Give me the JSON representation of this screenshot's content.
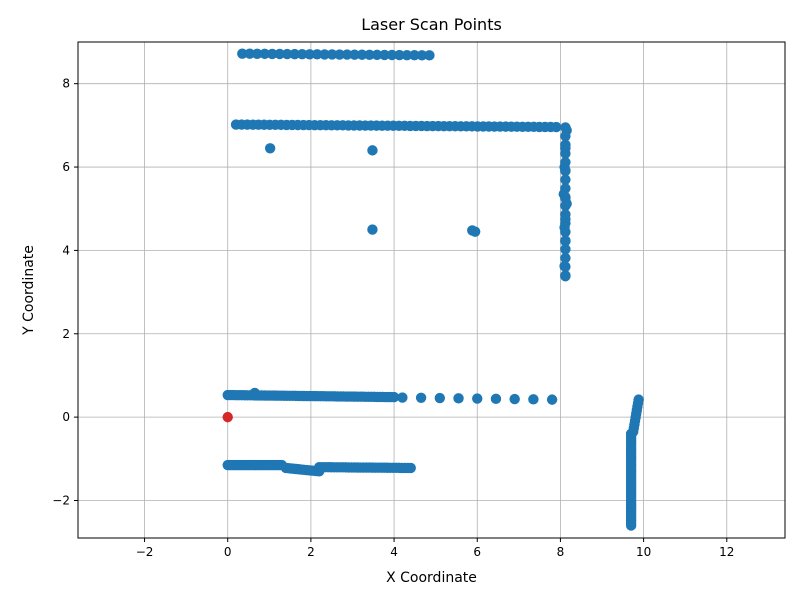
{
  "chart_data": {
    "type": "scatter",
    "title": "Laser Scan Points",
    "xlabel": "X Coordinate",
    "ylabel": "Y Coordinate",
    "xlim": [
      -3.6,
      13.4
    ],
    "ylim": [
      -2.9,
      9.0
    ],
    "xticks": [
      -2,
      0,
      2,
      4,
      6,
      8,
      10,
      12
    ],
    "yticks": [
      -2,
      0,
      2,
      4,
      6,
      8
    ],
    "grid": true,
    "colors": {
      "points": "#1f77b4",
      "origin": "#d62728"
    },
    "origin": [
      0,
      0
    ],
    "segments": [
      {
        "from": [
          0.0,
          0.53
        ],
        "to": [
          4.0,
          0.48
        ],
        "count": 60
      },
      {
        "from": [
          4.2,
          0.47
        ],
        "to": [
          7.8,
          0.42
        ],
        "count": 9
      },
      {
        "from": [
          0.0,
          -1.15
        ],
        "to": [
          1.3,
          -1.15
        ],
        "count": 30
      },
      {
        "from": [
          1.4,
          -1.22
        ],
        "to": [
          2.2,
          -1.3
        ],
        "count": 14
      },
      {
        "from": [
          2.2,
          -1.2
        ],
        "to": [
          4.4,
          -1.22
        ],
        "count": 32
      },
      {
        "from": [
          0.2,
          7.02
        ],
        "to": [
          7.9,
          6.96
        ],
        "count": 58
      },
      {
        "from": [
          8.12,
          6.95
        ],
        "to": [
          8.12,
          3.4
        ],
        "count": 18
      },
      {
        "from": [
          0.35,
          8.72
        ],
        "to": [
          4.85,
          8.68
        ],
        "count": 26
      },
      {
        "from": [
          9.7,
          -0.4
        ],
        "to": [
          9.7,
          -2.6
        ],
        "count": 40
      },
      {
        "from": [
          9.75,
          -0.35
        ],
        "to": [
          9.88,
          0.42
        ],
        "count": 10
      }
    ],
    "points": [
      [
        0.65,
        0.58
      ],
      [
        1.02,
        6.45
      ],
      [
        3.48,
        6.4
      ],
      [
        3.48,
        4.5
      ],
      [
        5.88,
        4.48
      ],
      [
        5.95,
        4.45
      ],
      [
        8.12,
        6.45
      ],
      [
        8.1,
        6.0
      ],
      [
        8.12,
        5.92
      ],
      [
        8.08,
        5.35
      ],
      [
        8.12,
        5.25
      ],
      [
        8.15,
        5.12
      ],
      [
        8.12,
        4.75
      ],
      [
        8.1,
        4.55
      ],
      [
        8.12,
        4.22
      ],
      [
        8.1,
        3.62
      ],
      [
        8.12,
        3.38
      ],
      [
        8.15,
        6.88
      ]
    ]
  }
}
